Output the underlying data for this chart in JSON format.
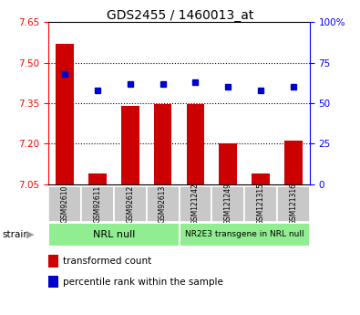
{
  "title": "GDS2455 / 1460013_at",
  "samples": [
    "GSM92610",
    "GSM92611",
    "GSM92612",
    "GSM92613",
    "GSM121242",
    "GSM121249",
    "GSM121315",
    "GSM121316"
  ],
  "transformed_count": [
    7.57,
    7.09,
    7.34,
    7.345,
    7.345,
    7.2,
    7.09,
    7.21
  ],
  "percentile_rank": [
    68,
    58,
    62,
    62,
    63,
    60,
    58,
    60
  ],
  "ylim_left": [
    7.05,
    7.65
  ],
  "ylim_right": [
    0,
    100
  ],
  "yticks_left": [
    7.05,
    7.2,
    7.35,
    7.5,
    7.65
  ],
  "yticks_right": [
    0,
    25,
    50,
    75,
    100
  ],
  "ytick_labels_right": [
    "0",
    "25",
    "50",
    "75",
    "100%"
  ],
  "hlines": [
    7.2,
    7.35,
    7.5
  ],
  "group1_label": "NRL null",
  "group2_label": "NR2E3 transgene in NRL null",
  "group_color": "#90EE90",
  "bar_color": "#CC0000",
  "dot_color": "#0000CC",
  "bar_width": 0.55,
  "bar_bottom": 7.05,
  "strain_label": "strain",
  "legend_bar_label": "transformed count",
  "legend_dot_label": "percentile rank within the sample",
  "sample_box_color": "#C8C8C8",
  "title_fontsize": 10,
  "tick_fontsize": 7.5,
  "sample_fontsize": 5.5,
  "group_fontsize1": 8,
  "group_fontsize2": 6.5,
  "legend_fontsize": 7.5
}
